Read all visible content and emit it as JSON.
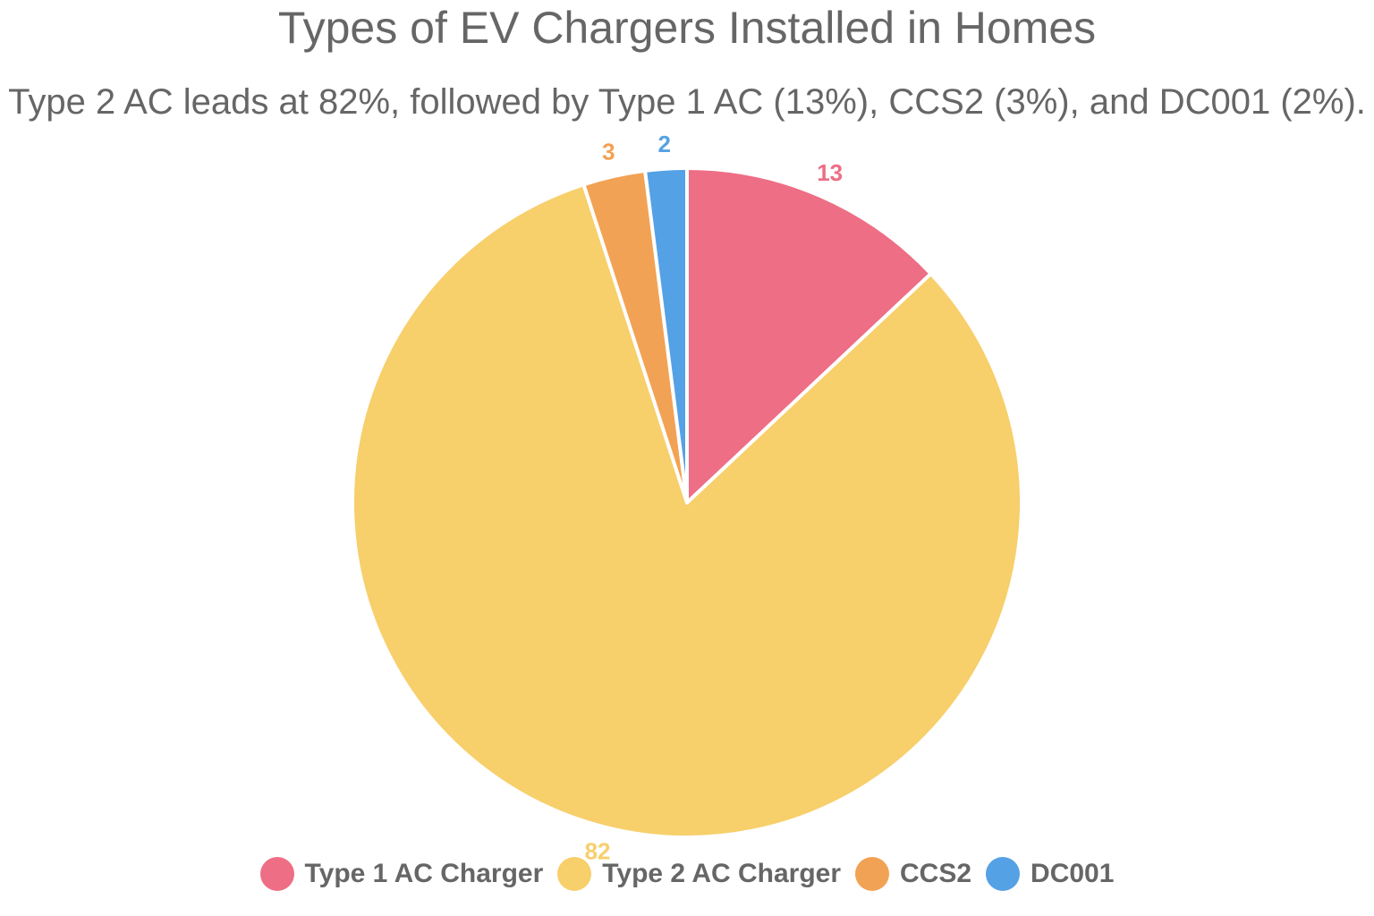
{
  "chart_data": {
    "type": "pie",
    "title": "Types of EV Chargers Installed in Homes",
    "subtitle": "Type 2 AC leads at 82%, followed by Type 1 AC (13%), CCS2 (3%), and DC001 (2%).",
    "categories": [
      "Type 1 AC Charger",
      "Type 2 AC Charger",
      "CCS2",
      "DC001"
    ],
    "values": [
      13,
      82,
      3,
      2
    ],
    "colors": [
      "#ed6e85",
      "#f7cf6b",
      "#f2a254",
      "#55a1e5"
    ],
    "data_labels": [
      "13",
      "82",
      "3",
      "2"
    ],
    "legend_position": "bottom",
    "start_angle_deg": 0,
    "direction": "clockwise"
  },
  "legend": {
    "items": [
      {
        "label": "Type 1 AC Charger",
        "color": "#ed6e85"
      },
      {
        "label": "Type 2 AC Charger",
        "color": "#f7cf6b"
      },
      {
        "label": "CCS2",
        "color": "#f2a254"
      },
      {
        "label": "DC001",
        "color": "#55a1e5"
      }
    ]
  }
}
